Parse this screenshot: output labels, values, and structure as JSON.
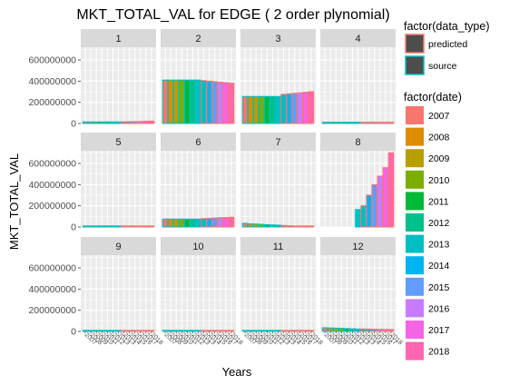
{
  "chart_data": {
    "type": "bar",
    "title": "MKT_TOTAL_VAL for EDGE ( 2  order plynomial)",
    "xlabel": "Years",
    "ylabel": "MKT_TOTAL_VAL",
    "ylim": [
      0,
      720000000
    ],
    "y_ticks": [
      0,
      200000000,
      400000000,
      600000000
    ],
    "y_tick_labels": [
      "0",
      "200000000",
      "400000000",
      "600000000"
    ],
    "years": [
      "2007",
      "2008",
      "2009",
      "2010",
      "2011",
      "2012",
      "2013",
      "2014",
      "2015",
      "2016",
      "2017",
      "2018"
    ],
    "facets": [
      {
        "label": "1",
        "source": [
          15000000,
          15000000,
          15000000,
          15000000,
          15000000,
          15000000,
          15000000
        ],
        "predicted": [
          16000000,
          17000000,
          18000000,
          19000000,
          21000000,
          23000000
        ]
      },
      {
        "label": "2",
        "source": [
          410000000,
          410000000,
          410000000,
          410000000,
          410000000,
          410000000,
          410000000
        ],
        "predicted": [
          405000000,
          400000000,
          395000000,
          390000000,
          385000000,
          380000000
        ]
      },
      {
        "label": "3",
        "source": [
          255000000,
          255000000,
          255000000,
          255000000,
          255000000,
          255000000,
          255000000
        ],
        "predicted": [
          275000000,
          280000000,
          285000000,
          290000000,
          295000000,
          300000000
        ]
      },
      {
        "label": "4",
        "source": [
          12000000,
          12000000,
          12000000,
          12000000,
          12000000,
          12000000,
          12000000
        ],
        "predicted": [
          12000000,
          12000000,
          12000000,
          12000000,
          12000000,
          12000000
        ]
      },
      {
        "label": "5",
        "source": [
          10000000,
          10000000,
          10000000,
          10000000,
          10000000,
          10000000,
          10000000
        ],
        "predicted": [
          10000000,
          10000000,
          10000000,
          10000000,
          10000000,
          10000000
        ]
      },
      {
        "label": "6",
        "source": [
          75000000,
          75000000,
          75000000,
          75000000,
          75000000,
          75000000,
          75000000
        ],
        "predicted": [
          80000000,
          82000000,
          85000000,
          88000000,
          90000000,
          92000000
        ]
      },
      {
        "label": "7",
        "source": [
          35000000,
          30000000,
          28000000,
          25000000,
          22000000,
          20000000,
          18000000
        ],
        "predicted": [
          15000000,
          12000000,
          10000000,
          8000000,
          6000000,
          5000000
        ]
      },
      {
        "label": "8",
        "source": [
          0,
          0,
          0,
          0,
          0,
          0,
          165000000
        ],
        "predicted": [
          200000000,
          300000000,
          400000000,
          480000000,
          560000000,
          700000000
        ]
      },
      {
        "label": "9",
        "source": [
          5000000,
          5000000,
          5000000,
          5000000,
          5000000,
          5000000,
          5000000
        ],
        "predicted": [
          5000000,
          5000000,
          5000000,
          5000000,
          5000000,
          5000000
        ]
      },
      {
        "label": "10",
        "source": [
          10000000,
          10000000,
          10000000,
          10000000,
          10000000,
          10000000,
          10000000
        ],
        "predicted": [
          10000000,
          10000000,
          10000000,
          10000000,
          10000000,
          10000000
        ]
      },
      {
        "label": "11",
        "source": [
          8000000,
          8000000,
          8000000,
          8000000,
          8000000,
          8000000,
          8000000
        ],
        "predicted": [
          8000000,
          8000000,
          8000000,
          8000000,
          8000000,
          8000000
        ]
      },
      {
        "label": "12",
        "source": [
          35000000,
          33000000,
          31000000,
          29000000,
          27000000,
          25000000,
          23000000
        ],
        "predicted": [
          23000000,
          22000000,
          21000000,
          20000000,
          19000000,
          18000000
        ]
      }
    ],
    "legend_data_type": {
      "title": "factor(data_type)",
      "items": [
        {
          "label": "predicted",
          "color": "#F8766D"
        },
        {
          "label": "source",
          "color": "#00BFC4"
        }
      ]
    },
    "legend_date": {
      "title": "factor(date)",
      "items": [
        {
          "label": "2007",
          "color": "#F8766D"
        },
        {
          "label": "2008",
          "color": "#DE8C00"
        },
        {
          "label": "2009",
          "color": "#B79F00"
        },
        {
          "label": "2010",
          "color": "#7CAE00"
        },
        {
          "label": "2011",
          "color": "#00BA38"
        },
        {
          "label": "2012",
          "color": "#00C08B"
        },
        {
          "label": "2013",
          "color": "#00BFC4"
        },
        {
          "label": "2014",
          "color": "#00B4F0"
        },
        {
          "label": "2015",
          "color": "#619CFF"
        },
        {
          "label": "2016",
          "color": "#C77CFF"
        },
        {
          "label": "2017",
          "color": "#F564E3"
        },
        {
          "label": "2018",
          "color": "#FF64B0"
        }
      ]
    },
    "grid": true,
    "legend_position": "right"
  }
}
